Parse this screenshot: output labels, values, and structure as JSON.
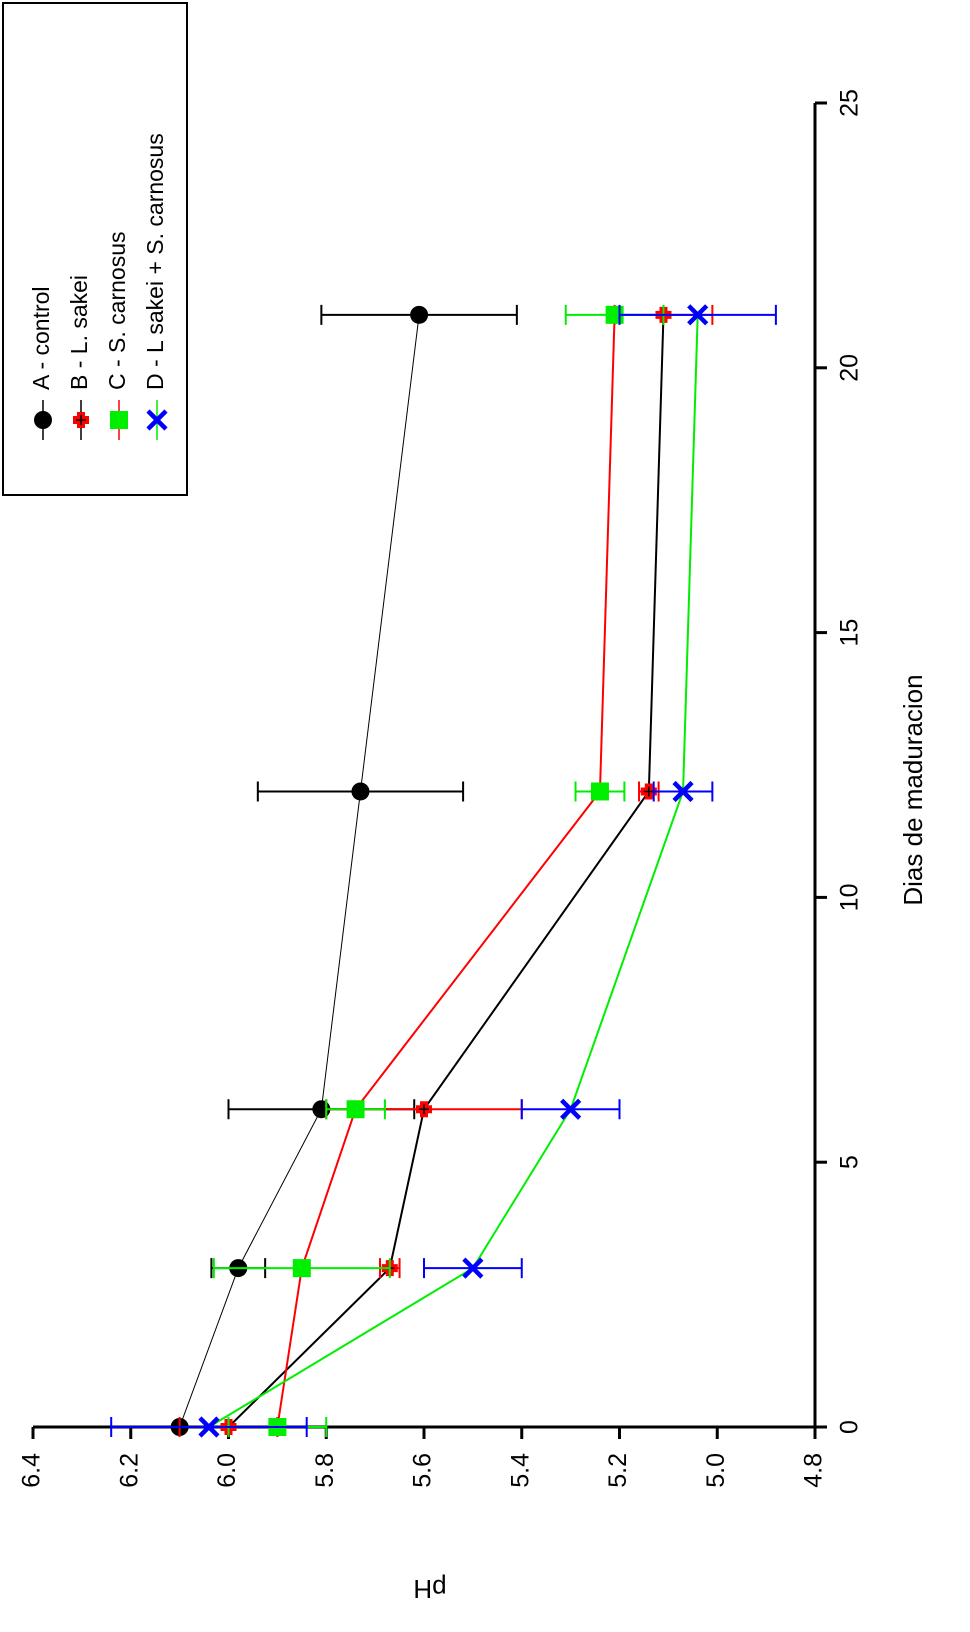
{
  "chart_data": {
    "type": "line",
    "x_label": "Dias de maduracion",
    "y_label": "pH",
    "x": [
      0,
      3,
      6,
      12,
      21
    ],
    "series": [
      {
        "name": "A - control",
        "color": "#000000",
        "line_color": "#000000",
        "line_width": 1,
        "marker": "circle",
        "values": [
          6.1,
          5.98,
          5.81,
          5.73,
          5.61
        ],
        "errors": [
          0,
          0.055,
          0.19,
          0.21,
          0.2
        ]
      },
      {
        "name": "B - L. sakei",
        "color": "#ff0000",
        "line_color": "#000000",
        "line_width": 2,
        "marker": "crossed-square",
        "values": [
          6.0,
          5.67,
          5.6,
          5.14,
          5.11
        ],
        "errors": [
          0.1,
          0.02,
          0.2,
          0.02,
          0.1
        ]
      },
      {
        "name": "C - S. carnosus",
        "color": "#00ee00",
        "line_color": "#ff0000",
        "line_width": 2,
        "marker": "square",
        "values": [
          5.9,
          5.85,
          5.74,
          5.24,
          5.21
        ],
        "errors": [
          0.1,
          0.18,
          0.06,
          0.05,
          0.1
        ]
      },
      {
        "name": "D - L sakei + S. carnosus",
        "color": "#0000ff",
        "line_color": "#00ee00",
        "line_width": 2,
        "marker": "x",
        "values": [
          6.04,
          5.5,
          5.3,
          5.07,
          5.04
        ],
        "errors": [
          0.2,
          0.1,
          0.1,
          0.06,
          0.16
        ]
      }
    ],
    "xlim": [
      0,
      25
    ],
    "xticks": [
      0,
      5,
      10,
      15,
      20,
      25
    ],
    "ylim": [
      4.8,
      6.4
    ],
    "yticks": [
      4.8,
      {
        "value": 5.0,
        "label": "5.0"
      },
      5.2,
      5.4,
      5.6,
      5.8,
      {
        "value": 6.0,
        "label": "6.0"
      },
      6.2,
      6.4
    ],
    "legend": "topright",
    "rotation": -90
  }
}
